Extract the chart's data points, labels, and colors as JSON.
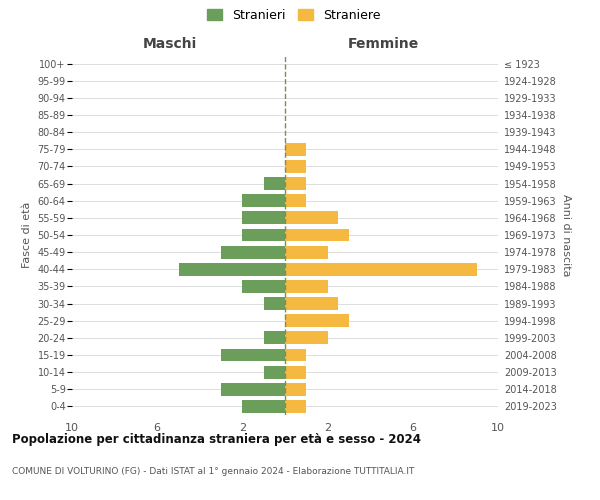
{
  "age_groups": [
    "0-4",
    "5-9",
    "10-14",
    "15-19",
    "20-24",
    "25-29",
    "30-34",
    "35-39",
    "40-44",
    "45-49",
    "50-54",
    "55-59",
    "60-64",
    "65-69",
    "70-74",
    "75-79",
    "80-84",
    "85-89",
    "90-94",
    "95-99",
    "100+"
  ],
  "birth_years": [
    "2019-2023",
    "2014-2018",
    "2009-2013",
    "2004-2008",
    "1999-2003",
    "1994-1998",
    "1989-1993",
    "1984-1988",
    "1979-1983",
    "1974-1978",
    "1969-1973",
    "1964-1968",
    "1959-1963",
    "1954-1958",
    "1949-1953",
    "1944-1948",
    "1939-1943",
    "1934-1938",
    "1929-1933",
    "1924-1928",
    "≤ 1923"
  ],
  "maschi": [
    2,
    3,
    1,
    3,
    1,
    0,
    1,
    2,
    5,
    3,
    2,
    2,
    2,
    1,
    0,
    0,
    0,
    0,
    0,
    0,
    0
  ],
  "femmine": [
    1,
    1,
    1,
    1,
    2,
    3,
    2.5,
    2,
    9,
    2,
    3,
    2.5,
    1,
    1,
    1,
    1,
    0,
    0,
    0,
    0,
    0
  ],
  "male_color": "#6a9e5a",
  "female_color": "#f5b942",
  "title_main": "Popolazione per cittadinanza straniera per età e sesso - 2024",
  "title_sub": "COMUNE DI VOLTURINO (FG) - Dati ISTAT al 1° gennaio 2024 - Elaborazione TUTTITALIA.IT",
  "xlabel_left": "Maschi",
  "xlabel_right": "Femmine",
  "ylabel_left": "Fasce di età",
  "ylabel_right": "Anni di nascita",
  "legend_male": "Stranieri",
  "legend_female": "Straniere",
  "xlim": 10,
  "background_color": "#ffffff",
  "grid_color": "#d0d0d0",
  "dashed_line_color": "#888855"
}
